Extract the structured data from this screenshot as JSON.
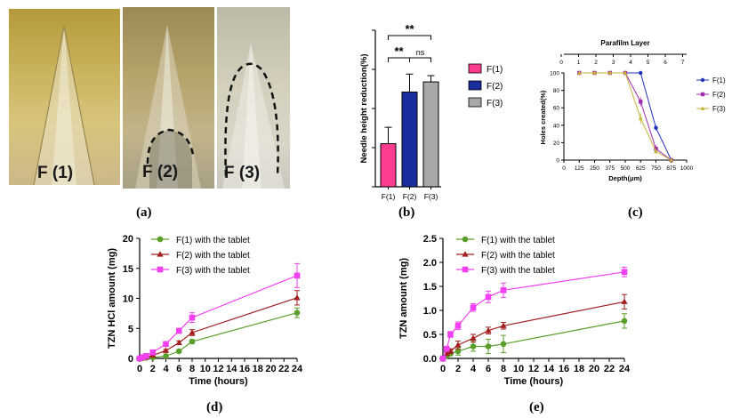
{
  "photos": [
    {
      "label": "F (1)"
    },
    {
      "label": "F (2)"
    },
    {
      "label": "F (3)"
    }
  ],
  "panel_labels": {
    "a": "(a)",
    "b": "(b)",
    "c": "(c)",
    "d": "(d)",
    "e": "(e)"
  },
  "chart_data": [
    {
      "type": "bar",
      "ylabel": "Needle height reduction(%)",
      "xlabel": "",
      "categories": [
        "F(1)",
        "F(2)",
        "F(3)"
      ],
      "values": [
        5.5,
        12.1,
        13.4
      ],
      "errors": [
        2.1,
        2.3,
        0.8
      ],
      "colors": [
        "#ff3d8f",
        "#1a2f9e",
        "#a8a8a8"
      ],
      "ylim": [
        0,
        20
      ],
      "yticks": [
        0,
        5,
        10,
        15,
        20
      ],
      "legend": [
        "F(1)",
        "F(2)",
        "F(3)"
      ],
      "significance": [
        {
          "from": "F(1)",
          "to": "F(2)",
          "label": "**"
        },
        {
          "from": "F(2)",
          "to": "F(3)",
          "label": "ns"
        },
        {
          "from": "F(1)",
          "to": "F(3)",
          "label": "**"
        }
      ]
    },
    {
      "type": "line",
      "title": "Parafilm Layer",
      "xlabel": "Depth(μm)",
      "ylabel": "Holes created(%)",
      "xlim": [
        0,
        1000
      ],
      "ylim": [
        0,
        100
      ],
      "xticks": [
        0,
        125,
        250,
        375,
        500,
        625,
        750,
        875,
        1000
      ],
      "yticks": [
        0,
        20,
        40,
        60,
        80,
        100
      ],
      "top_axis_ticks": [
        "0",
        "1",
        "2",
        "3",
        "4",
        "5",
        "6",
        "7"
      ],
      "x": [
        125,
        250,
        375,
        500,
        625,
        750,
        875
      ],
      "series": [
        {
          "name": "F(1)",
          "color": "#2233bb",
          "marker": "circle",
          "values": [
            100,
            100,
            100,
            100,
            100,
            37,
            0
          ],
          "errors": [
            0,
            0,
            0,
            0,
            0,
            3,
            0
          ]
        },
        {
          "name": "F(2)",
          "color": "#a02cb0",
          "marker": "square",
          "values": [
            100,
            100,
            100,
            100,
            67,
            13,
            0
          ],
          "errors": [
            0,
            0,
            0,
            0,
            5,
            4,
            0
          ]
        },
        {
          "name": "F(3)",
          "color": "#c4b233",
          "marker": "triangle",
          "values": [
            100,
            100,
            100,
            100,
            48,
            10,
            0
          ],
          "errors": [
            0,
            0,
            0,
            0,
            6,
            3,
            0
          ]
        }
      ]
    },
    {
      "type": "line",
      "xlabel": "Time (hours)",
      "ylabel": "TZN HCl amount (mg)",
      "xlim": [
        0,
        24
      ],
      "ylim": [
        0,
        20
      ],
      "xticks": [
        0,
        2,
        4,
        6,
        8,
        10,
        12,
        14,
        16,
        18,
        20,
        22,
        24
      ],
      "yticks": [
        0,
        5,
        10,
        15,
        20
      ],
      "series": [
        {
          "name": "F(1) with the tablet",
          "color": "#5a9e2a",
          "marker": "circle",
          "x": [
            0,
            0.5,
            1,
            2,
            4,
            6,
            8,
            24
          ],
          "values": [
            0,
            0.05,
            0.1,
            0.15,
            0.4,
            1.2,
            2.8,
            7.6
          ],
          "errors": [
            0,
            0,
            0,
            0,
            0.1,
            0.2,
            0.3,
            0.8
          ]
        },
        {
          "name": "F(2) with the tablet",
          "color": "#a11f1f",
          "marker": "triangle",
          "x": [
            0,
            0.5,
            1,
            2,
            4,
            6,
            8,
            24
          ],
          "values": [
            0,
            0.1,
            0.2,
            0.5,
            1.3,
            2.6,
            4.3,
            10.1
          ],
          "errors": [
            0,
            0,
            0,
            0.1,
            0.2,
            0.3,
            0.5,
            1.2
          ]
        },
        {
          "name": "F(3) with the tablet",
          "color": "#f040f0",
          "marker": "square",
          "x": [
            0,
            0.5,
            1,
            2,
            4,
            6,
            8,
            24
          ],
          "values": [
            0,
            0.2,
            0.4,
            1.0,
            2.4,
            4.6,
            6.8,
            13.8
          ],
          "errors": [
            0,
            0,
            0.1,
            0.2,
            0.3,
            0.4,
            0.8,
            2.0
          ]
        }
      ]
    },
    {
      "type": "line",
      "xlabel": "Time (hours)",
      "ylabel": "TZN amount (mg)",
      "xlim": [
        0,
        24
      ],
      "ylim": [
        0,
        2.5
      ],
      "xticks": [
        0,
        2,
        4,
        6,
        8,
        10,
        12,
        14,
        16,
        18,
        20,
        22,
        24
      ],
      "yticks": [
        "0.0",
        "0.5",
        "1.0",
        "1.5",
        "2.0",
        "2.5"
      ],
      "series": [
        {
          "name": "F(1) with the tablet",
          "color": "#5a9e2a",
          "marker": "circle",
          "x": [
            0,
            0.5,
            1,
            2,
            4,
            6,
            8,
            24
          ],
          "values": [
            0,
            0.05,
            0.1,
            0.15,
            0.25,
            0.25,
            0.3,
            0.78
          ],
          "errors": [
            0,
            0.02,
            0.04,
            0.08,
            0.1,
            0.15,
            0.18,
            0.15
          ]
        },
        {
          "name": "F(2) with the tablet",
          "color": "#a11f1f",
          "marker": "triangle",
          "x": [
            0,
            0.5,
            1,
            2,
            4,
            6,
            8,
            24
          ],
          "values": [
            0,
            0.1,
            0.15,
            0.28,
            0.42,
            0.58,
            0.68,
            1.18
          ],
          "errors": [
            0,
            0.03,
            0.05,
            0.08,
            0.08,
            0.07,
            0.07,
            0.15
          ]
        },
        {
          "name": "F(3) with the tablet",
          "color": "#f040f0",
          "marker": "square",
          "x": [
            0,
            0.5,
            1,
            2,
            4,
            6,
            8,
            24
          ],
          "values": [
            0,
            0.2,
            0.5,
            0.68,
            1.06,
            1.28,
            1.42,
            1.8
          ],
          "errors": [
            0,
            0.04,
            0.06,
            0.08,
            0.08,
            0.12,
            0.15,
            0.1
          ]
        }
      ]
    }
  ]
}
